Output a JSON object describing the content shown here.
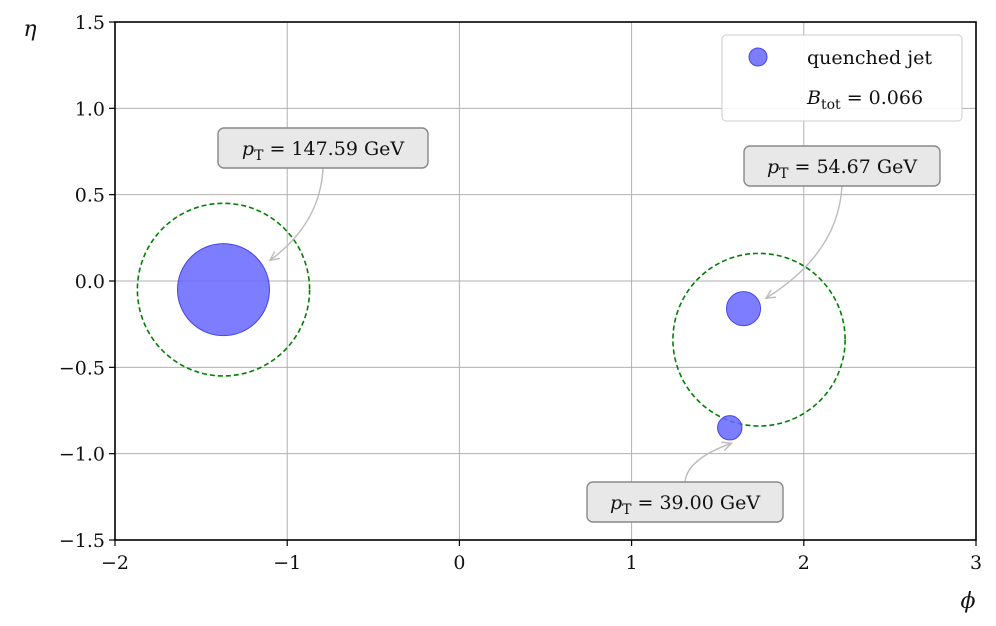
{
  "chart_data": {
    "type": "scatter",
    "xlabel": "ϕ",
    "ylabel": "η",
    "xlim": [
      -2,
      3
    ],
    "ylim": [
      -1.5,
      1.5
    ],
    "x_ticks": [
      -2,
      -1,
      0,
      1,
      2,
      3
    ],
    "y_ticks": [
      -1.5,
      -1.0,
      -0.5,
      0.0,
      0.5,
      1.0,
      1.5
    ],
    "x_tick_labels": [
      "−2",
      "−1",
      "0",
      "1",
      "2",
      "3"
    ],
    "y_tick_labels": [
      "−1.5",
      "−1.0",
      "−0.5",
      "0.0",
      "0.5",
      "1.0",
      "1.5"
    ],
    "grid": true,
    "series": [
      {
        "name": "quenched jet",
        "color": "#6666ff",
        "points": [
          {
            "x": -1.37,
            "y": -0.05,
            "pt": 147.59
          },
          {
            "x": 1.65,
            "y": -0.16,
            "pt": 54.67
          },
          {
            "x": 1.57,
            "y": -0.85,
            "pt": 39.0
          }
        ]
      }
    ],
    "jet_cones": [
      {
        "x": -1.37,
        "y": -0.05,
        "radius": 0.5,
        "color": "#008000"
      },
      {
        "x": 1.74,
        "y": -0.34,
        "radius": 0.5,
        "color": "#008000"
      }
    ],
    "annotations": [
      {
        "prefix": "p",
        "sub": "T",
        "rest": " = 147.59 GeV",
        "target_x": -1.1,
        "target_y": 0.12
      },
      {
        "prefix": "p",
        "sub": "T",
        "rest": " = 54.67 GeV",
        "target_x": 1.78,
        "target_y": -0.1
      },
      {
        "prefix": "p",
        "sub": "T",
        "rest": " = 39.00 GeV",
        "target_x": 1.58,
        "target_y": -0.94
      }
    ],
    "legend": {
      "placement": "top-right",
      "series_label": "quenched jet",
      "extra_prefix": "B",
      "extra_sub": "tot",
      "extra_rest": " = 0.066"
    }
  }
}
